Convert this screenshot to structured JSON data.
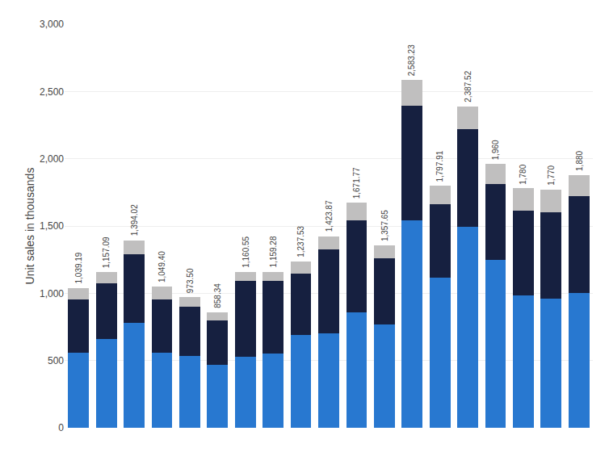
{
  "chart_data": {
    "type": "bar",
    "stacked": true,
    "grid": true,
    "tick_labels": "y",
    "ylabel": "Unit sales in thousands",
    "categories": [
      null,
      null,
      null,
      null,
      null,
      null,
      null,
      null,
      null,
      null,
      null,
      null,
      null,
      null,
      null,
      null,
      null,
      null,
      null
    ],
    "series": [
      {
        "color": "#2878D0",
        "values": [
          560,
          660,
          780,
          560,
          535,
          470,
          530,
          555,
          690,
          700,
          860,
          770,
          1540,
          1115,
          1495,
          1250,
          985,
          960,
          1000
        ]
      },
      {
        "color": "#162040",
        "values": [
          395,
          415,
          510,
          395,
          365,
          330,
          560,
          535,
          455,
          625,
          680,
          490,
          855,
          545,
          725,
          560,
          630,
          645,
          720
        ]
      },
      {
        "color": "#C0BFBF",
        "values": [
          84.19,
          82.09,
          104.02,
          94.4,
          73.5,
          58.34,
          70.55,
          69.28,
          92.53,
          98.87,
          131.77,
          97.65,
          188.23,
          137.91,
          167.52,
          150,
          165,
          165,
          160
        ]
      }
    ],
    "totals": [
      1039.19,
      1157.09,
      1394.02,
      1049.4,
      973.5,
      858.34,
      1160.55,
      1159.28,
      1237.53,
      1423.87,
      1671.77,
      1357.65,
      2583.23,
      1797.91,
      2387.52,
      1960,
      1780,
      1770,
      1880
    ],
    "total_labels": [
      "1,039.19",
      "1,157.09",
      "1,394.02",
      "1,049.40",
      "973.50",
      "858.34",
      "1,160.55",
      "1,159.28",
      "1,237.53",
      "1,423.87",
      "1,671.77",
      "1,357.65",
      "2,583.23",
      "1,797.91",
      "2,387.52",
      "1,960",
      "1,780",
      "1,770",
      "1,880"
    ],
    "ylim": [
      0,
      3000
    ],
    "yticks": [
      0,
      500,
      {
        "value": 1000,
        "label": "1,000"
      },
      {
        "value": 1500,
        "label": "1,500"
      },
      {
        "value": 2000,
        "label": "2,000"
      },
      {
        "value": 2500,
        "label": "2,500"
      },
      {
        "value": 3000,
        "label": "3,000"
      }
    ]
  }
}
